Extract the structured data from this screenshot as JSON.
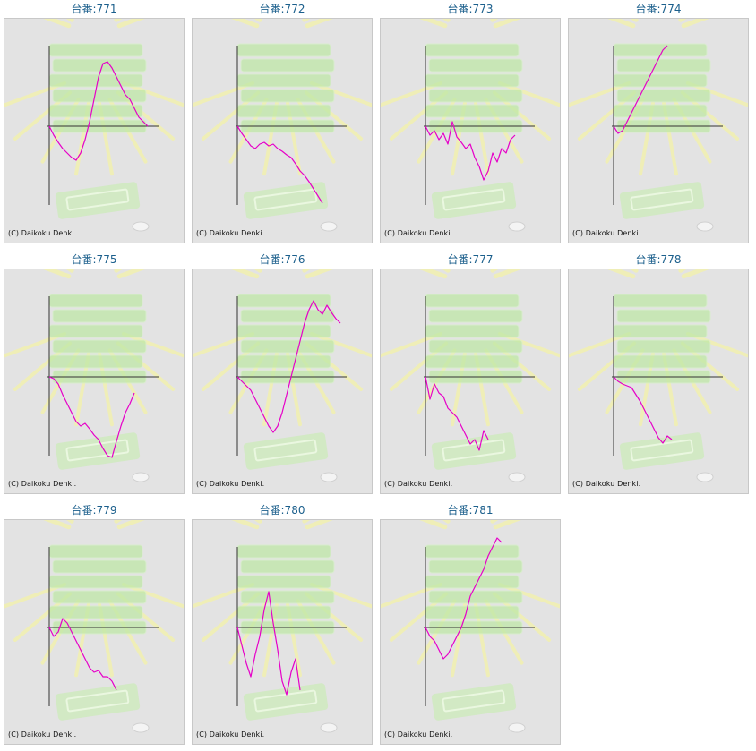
{
  "colors": {
    "title": "#1b5f8c",
    "line": "#e600c8",
    "axis": "#333333",
    "background": "#e3e3e3",
    "decoration_green": "#bfe8a8",
    "decoration_yellow": "#f2f0b0"
  },
  "chart_data": [
    {
      "type": "line",
      "title": "台番:771",
      "copyright": "(C) Daikoku Denki.",
      "values": [
        0,
        -10,
        -18,
        -25,
        -30,
        -35,
        -38,
        -30,
        -15,
        5,
        30,
        55,
        70,
        72,
        65,
        55,
        45,
        35,
        30,
        20,
        10,
        5,
        0
      ]
    },
    {
      "type": "line",
      "title": "台番:772",
      "copyright": "(C) Daikoku Denki.",
      "values": [
        0,
        -8,
        -15,
        -22,
        -25,
        -20,
        -18,
        -22,
        -20,
        -25,
        -28,
        -32,
        -35,
        -42,
        -50,
        -55,
        -62,
        -70,
        -78,
        -86
      ]
    },
    {
      "type": "line",
      "title": "台番:773",
      "copyright": "(C) Daikoku Denki.",
      "values": [
        0,
        -10,
        -5,
        -15,
        -8,
        -20,
        5,
        -12,
        -18,
        -25,
        -20,
        -35,
        -45,
        -60,
        -50,
        -30,
        -40,
        -25,
        -30,
        -15,
        -10
      ]
    },
    {
      "type": "line",
      "title": "台番:774",
      "copyright": "(C) Daikoku Denki.",
      "values": [
        0,
        -8,
        -5,
        5,
        15,
        25,
        35,
        45,
        55,
        65,
        75,
        85,
        90
      ]
    },
    {
      "type": "line",
      "title": "台番:775",
      "copyright": "(C) Daikoku Denki.",
      "values": [
        0,
        -2,
        -8,
        -20,
        -30,
        -40,
        -50,
        -55,
        -52,
        -58,
        -65,
        -70,
        -80,
        -88,
        -90,
        -72,
        -55,
        -40,
        -30,
        -18
      ]
    },
    {
      "type": "line",
      "title": "台番:776",
      "copyright": "(C) Daikoku Denki.",
      "values": [
        0,
        -5,
        -10,
        -15,
        -25,
        -35,
        -45,
        -55,
        -62,
        -55,
        -40,
        -20,
        0,
        20,
        40,
        60,
        75,
        85,
        75,
        70,
        80,
        72,
        65,
        60
      ]
    },
    {
      "type": "line",
      "title": "台番:777",
      "copyright": "(C) Daikoku Denki.",
      "values": [
        0,
        -25,
        -8,
        -18,
        -22,
        -35,
        -40,
        -45,
        -55,
        -65,
        -75,
        -70,
        -82,
        -60,
        -70
      ]
    },
    {
      "type": "line",
      "title": "台番:778",
      "copyright": "(C) Daikoku Denki.",
      "values": [
        0,
        -5,
        -8,
        -10,
        -12,
        -20,
        -28,
        -38,
        -48,
        -58,
        -68,
        -74,
        -66,
        -70
      ]
    },
    {
      "type": "line",
      "title": "台番:779",
      "copyright": "(C) Daikoku Denki.",
      "values": [
        0,
        -10,
        -5,
        10,
        5,
        -5,
        -15,
        -25,
        -35,
        -45,
        -50,
        -48,
        -55,
        -55,
        -60,
        -70
      ]
    },
    {
      "type": "line",
      "title": "台番:780",
      "copyright": "(C) Daikoku Denki.",
      "values": [
        0,
        -20,
        -40,
        -55,
        -30,
        -10,
        20,
        40,
        5,
        -25,
        -60,
        -75,
        -50,
        -35,
        -70
      ]
    },
    {
      "type": "line",
      "title": "台番:781",
      "copyright": "(C) Daikoku Denki.",
      "values": [
        0,
        -10,
        -15,
        -25,
        -35,
        -30,
        -20,
        -10,
        0,
        15,
        35,
        45,
        55,
        65,
        80,
        90,
        100,
        95
      ]
    }
  ]
}
